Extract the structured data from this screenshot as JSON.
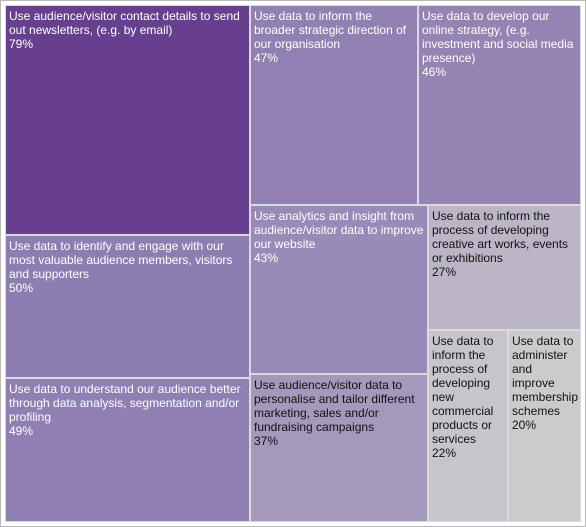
{
  "chart_data": {
    "type": "treemap",
    "items": [
      {
        "label": "Use audience/visitor contact details to send out newsletters, (e.g. by email)",
        "value": 79,
        "value_label": "79%",
        "color": "#663f8f",
        "text_color": "#ffffff"
      },
      {
        "label": "Use data to inform the broader strategic direction of our organisation",
        "value": 47,
        "value_label": "47%",
        "color": "#9181b3",
        "text_color": "#ffffff"
      },
      {
        "label": "Use data to develop our online strategy, (e.g. investment and social media presence)",
        "value": 46,
        "value_label": "46%",
        "color": "#9583b3",
        "text_color": "#ffffff"
      },
      {
        "label": "Use data to identify and engage with our most valuable audience members, visitors and supporters",
        "value": 50,
        "value_label": "50%",
        "color": "#8d7eb2",
        "text_color": "#ffffff"
      },
      {
        "label": "Use analytics and insight from audience/visitor data to improve our website",
        "value": 43,
        "value_label": "43%",
        "color": "#998bb7",
        "text_color": "#ffffff"
      },
      {
        "label": "Use data to inform the process of developing creative art works, events or exhibitions",
        "value": 27,
        "value_label": "27%",
        "color": "#bbb5c6",
        "text_color": "#111111"
      },
      {
        "label": "Use data to understand our audience better through data analysis, segmentation and/or profiling",
        "value": 49,
        "value_label": "49%",
        "color": "#8f7fb3",
        "text_color": "#ffffff"
      },
      {
        "label": "Use audience/visitor data to personalise and tailor different marketing, sales and/or fundraising campaigns",
        "value": 37,
        "value_label": "37%",
        "color": "#a499bb",
        "text_color": "#111111"
      },
      {
        "label": "Use data to inform the process of developing new commercial products or services",
        "value": 22,
        "value_label": "22%",
        "color": "#c8c4cc",
        "text_color": "#111111"
      },
      {
        "label": "Use data to administer and improve membership schemes",
        "value": 20,
        "value_label": "20%",
        "color": "#cbcbcb",
        "text_color": "#111111"
      }
    ]
  }
}
